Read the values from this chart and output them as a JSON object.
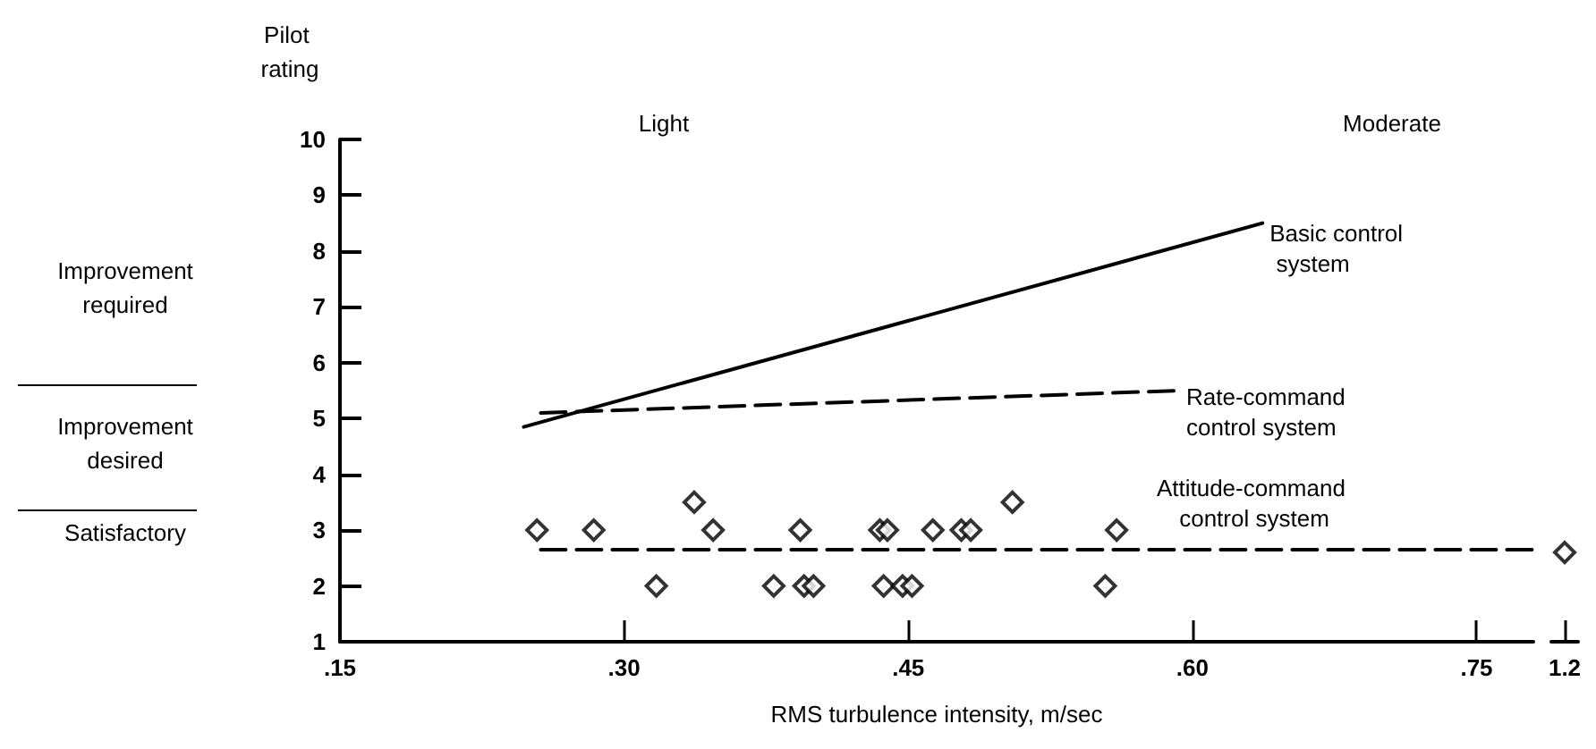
{
  "chart_data": [
    {
      "type": "scatter",
      "xlabel": "RMS turbulence intensity, m/sec",
      "ylabel": "Pilot rating",
      "xlim": [
        0.15,
        0.78
      ],
      "xticks": [
        {
          "value": 0.15,
          "label": ".15"
        },
        {
          "value": 0.3,
          "label": ".30"
        },
        {
          "value": 0.45,
          "label": ".45"
        },
        {
          "value": 0.6,
          "label": ".60"
        },
        {
          "value": 0.75,
          "label": ".75"
        }
      ],
      "ylim": [
        1,
        10
      ],
      "yticks": [
        1,
        2,
        3,
        4,
        5,
        6,
        7,
        8,
        9,
        10
      ],
      "marker": "diamond",
      "annotations": [
        "Light",
        "Moderate",
        "Improvement required",
        "Improvement desired",
        "Satisfactory"
      ],
      "series": [
        {
          "name": "Basic control system",
          "type": "line",
          "color": "#000000",
          "marker": "none",
          "line_style": "solid",
          "x": [
            0.247,
            0.637
          ],
          "values": [
            4.85,
            8.5
          ]
        },
        {
          "name": "Rate-command control system",
          "type": "line",
          "color": "#000000",
          "marker": "none",
          "line_style": "dashed",
          "x": [
            0.256,
            0.593
          ],
          "values": [
            5.1,
            5.5
          ]
        },
        {
          "name": "Attitude-command control system",
          "type": "line",
          "color": "#000000",
          "marker": "none",
          "line_style": "dashed",
          "x": [
            0.256,
            0.78
          ],
          "values": [
            2.65,
            2.65
          ]
        },
        {
          "color": "#000000",
          "x": [
            0.254,
            0.284,
            0.317,
            0.337,
            0.347,
            0.379,
            0.393,
            0.395,
            0.4,
            0.435,
            0.439,
            0.437,
            0.447,
            0.452,
            0.463,
            0.478,
            0.483,
            0.505,
            0.554,
            0.56
          ],
          "values": [
            3,
            3,
            2,
            3.5,
            3,
            2,
            3,
            2,
            2,
            3,
            3,
            2,
            2,
            2,
            3,
            3,
            3,
            3.5,
            2,
            3
          ]
        }
      ]
    },
    {
      "type": "scatter",
      "categories": [
        "1.2"
      ],
      "ylim": [
        1,
        10
      ],
      "tick_labels": "x",
      "marker": "diamond",
      "series": [
        {
          "color": "#000000",
          "values": [
            2.6
          ]
        }
      ]
    }
  ]
}
